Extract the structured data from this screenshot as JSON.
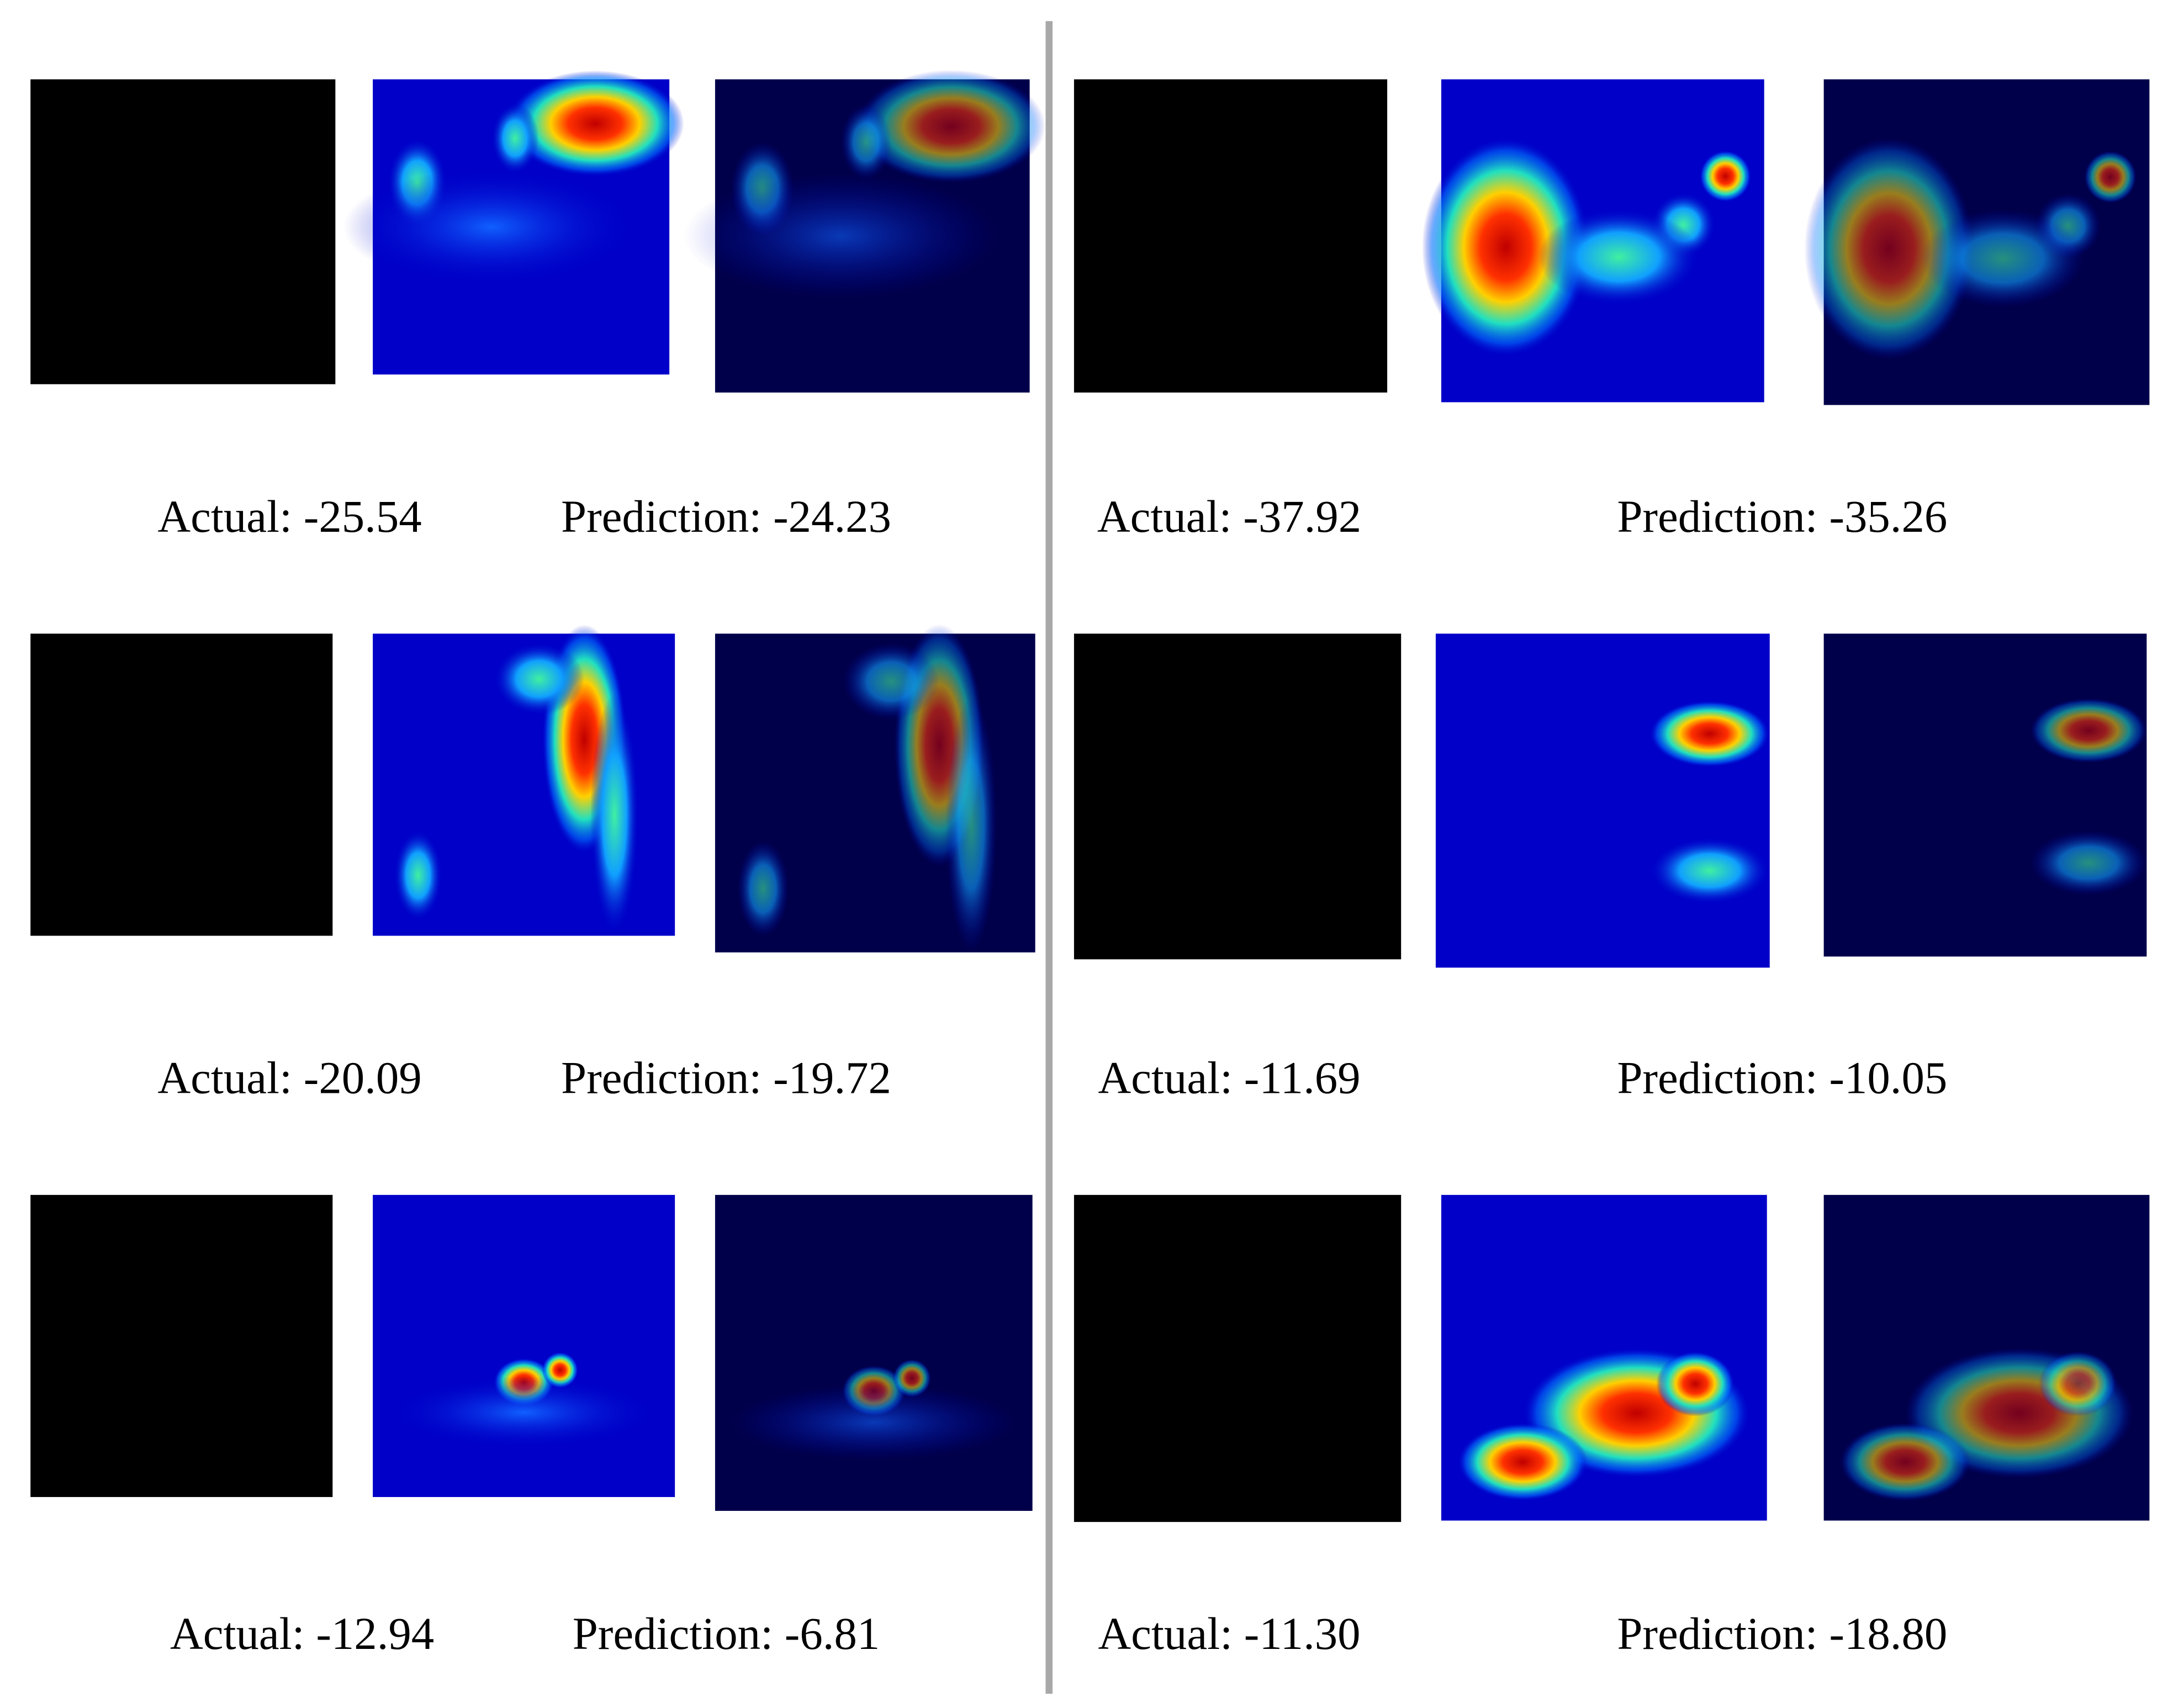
{
  "panels": [
    {
      "actual": "Actual: -25.54",
      "prediction": "Prediction: -24.23"
    },
    {
      "actual": "Actual: -37.92",
      "prediction": "Prediction: -35.26"
    },
    {
      "actual": "Actual: -20.09",
      "prediction": "Prediction: -19.72"
    },
    {
      "actual": "Actual: -11.69",
      "prediction": "Prediction: -10.05"
    },
    {
      "actual": "Actual: -12.94",
      "prediction": "Prediction: -6.81"
    },
    {
      "actual": "Actual: -11.30",
      "prediction": "Prediction: -18.80"
    }
  ]
}
